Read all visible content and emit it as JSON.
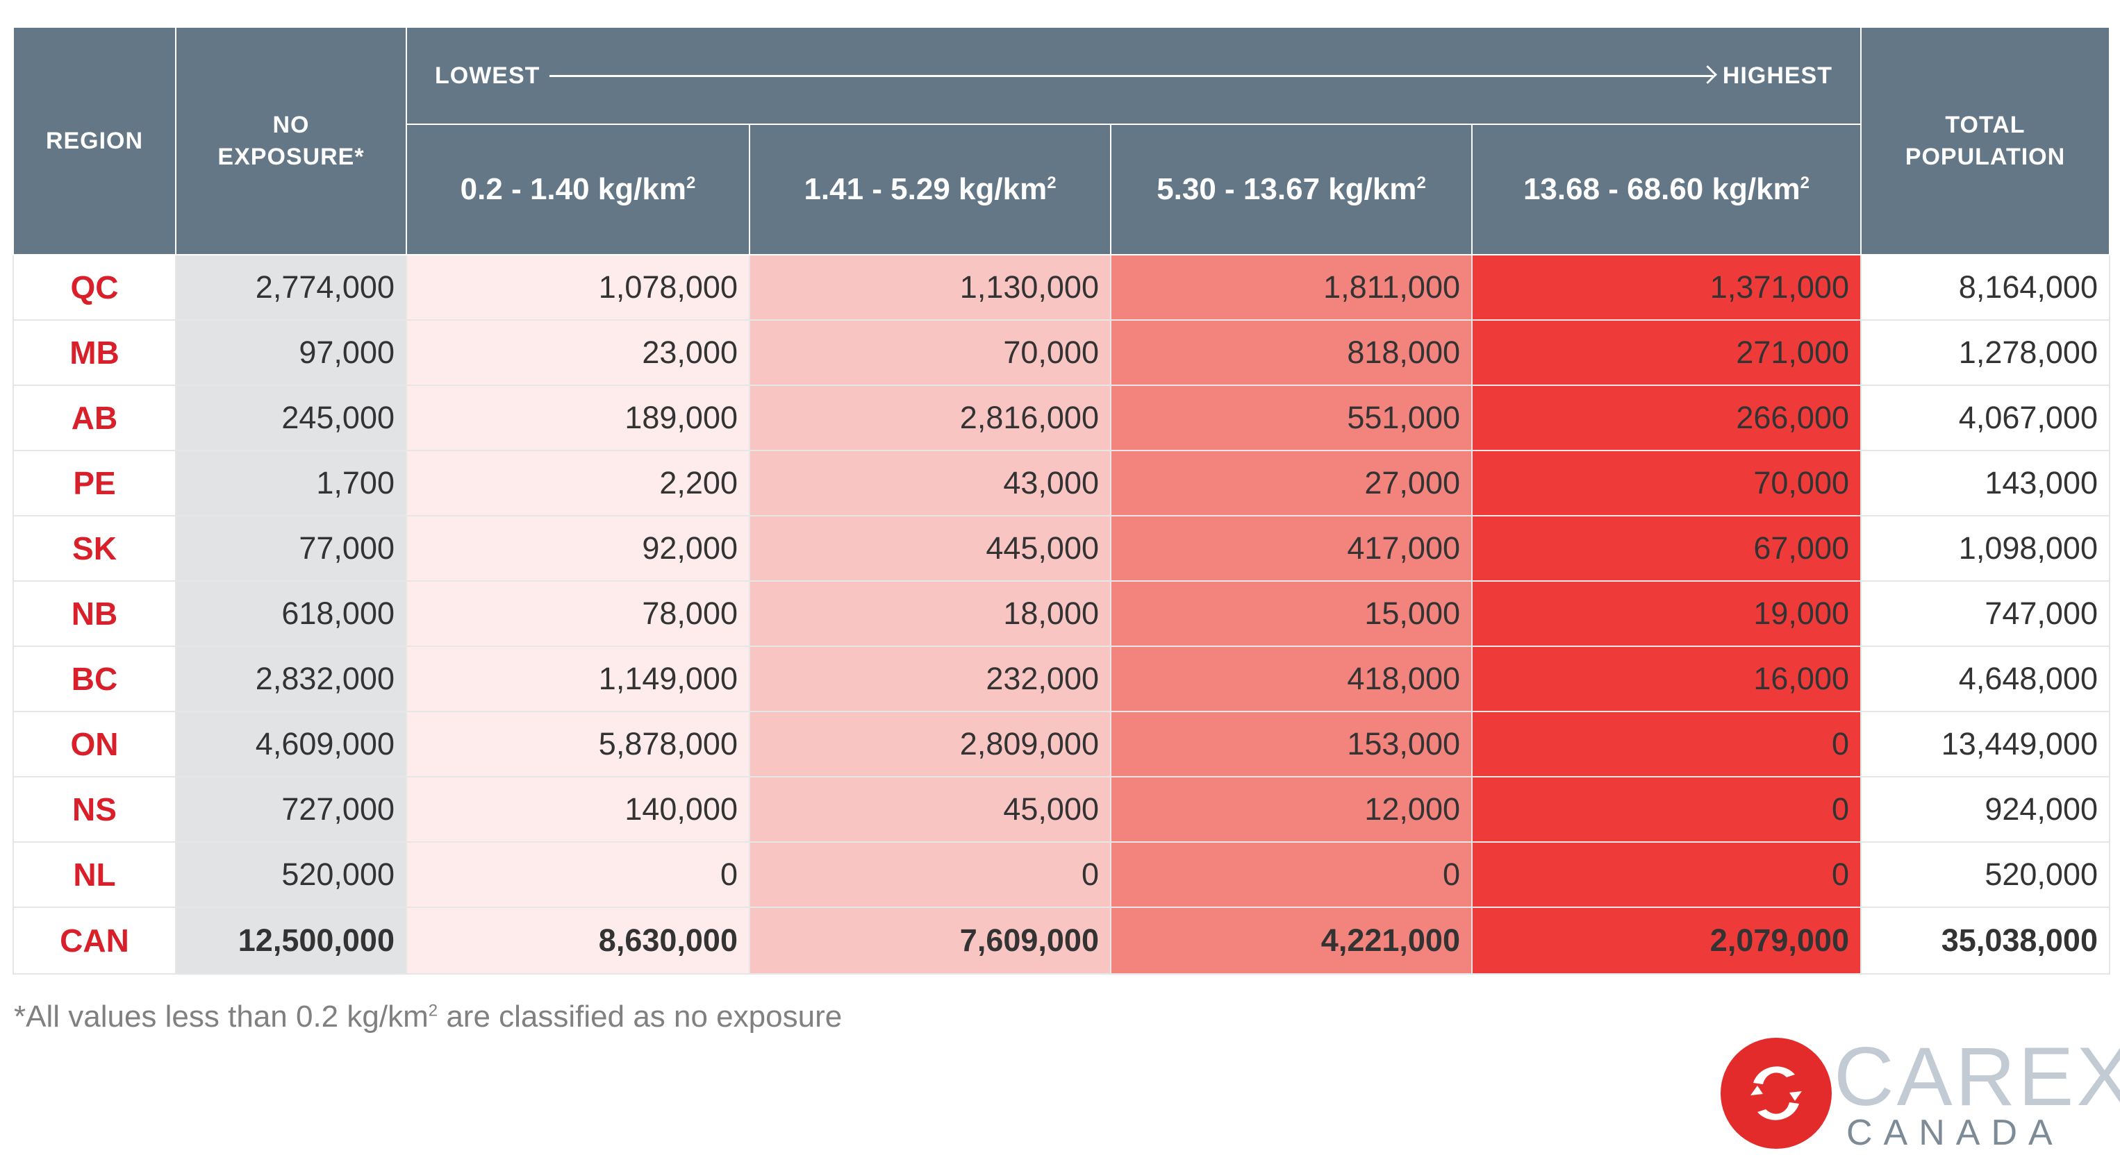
{
  "header": {
    "region": "REGION",
    "no_exposure": [
      "NO",
      "EXPOSURE*"
    ],
    "scale_low": "LOWEST",
    "scale_high": "HIGHEST",
    "total": [
      "TOTAL",
      "POPULATION"
    ],
    "ranges": [
      {
        "text": "0.2 - 1.40 kg/km",
        "sup": "2"
      },
      {
        "text": "1.41 - 5.29 kg/km",
        "sup": "2"
      },
      {
        "text": "5.30 - 13.67 kg/km",
        "sup": "2"
      },
      {
        "text": "13.68 - 68.60 kg/km",
        "sup": "2"
      }
    ]
  },
  "rows": [
    {
      "region": "QC",
      "values": [
        "2,774,000",
        "1,078,000",
        "1,130,000",
        "1,811,000",
        "1,371,000",
        "8,164,000"
      ]
    },
    {
      "region": "MB",
      "values": [
        "97,000",
        "23,000",
        "70,000",
        "818,000",
        "271,000",
        "1,278,000"
      ]
    },
    {
      "region": "AB",
      "values": [
        "245,000",
        "189,000",
        "2,816,000",
        "551,000",
        "266,000",
        "4,067,000"
      ]
    },
    {
      "region": "PE",
      "values": [
        "1,700",
        "2,200",
        "43,000",
        "27,000",
        "70,000",
        "143,000"
      ]
    },
    {
      "region": "SK",
      "values": [
        "77,000",
        "92,000",
        "445,000",
        "417,000",
        "67,000",
        "1,098,000"
      ]
    },
    {
      "region": "NB",
      "values": [
        "618,000",
        "78,000",
        "18,000",
        "15,000",
        "19,000",
        "747,000"
      ]
    },
    {
      "region": "BC",
      "values": [
        "2,832,000",
        "1,149,000",
        "232,000",
        "418,000",
        "16,000",
        "4,648,000"
      ]
    },
    {
      "region": "ON",
      "values": [
        "4,609,000",
        "5,878,000",
        "2,809,000",
        "153,000",
        "0",
        "13,449,000"
      ]
    },
    {
      "region": "NS",
      "values": [
        "727,000",
        "140,000",
        "45,000",
        "12,000",
        "0",
        "924,000"
      ]
    },
    {
      "region": "NL",
      "values": [
        "520,000",
        "0",
        "0",
        "0",
        "0",
        "520,000"
      ]
    }
  ],
  "total_row": {
    "region": "CAN",
    "values": [
      "12,500,000",
      "8,630,000",
      "7,609,000",
      "4,221,000",
      "2,079,000",
      "35,038,000"
    ]
  },
  "footnote": {
    "text": "*All values less than 0.2 kg/km",
    "sup": "2",
    "after": " are classified as no exposure"
  },
  "logo": {
    "name": "CAREX",
    "sub": "CANADA"
  },
  "colors": {
    "header_bg": "#647787",
    "region_text": "#d81f2a",
    "no_exposure_bg": "#e2e3e5",
    "level_1": "#fdeceb",
    "level_2": "#f8c5c3",
    "level_3": "#f2837d",
    "level_4": "#ee3b3a",
    "logo_red": "#e32b2b",
    "logo_grey": "#c2cbd3"
  }
}
